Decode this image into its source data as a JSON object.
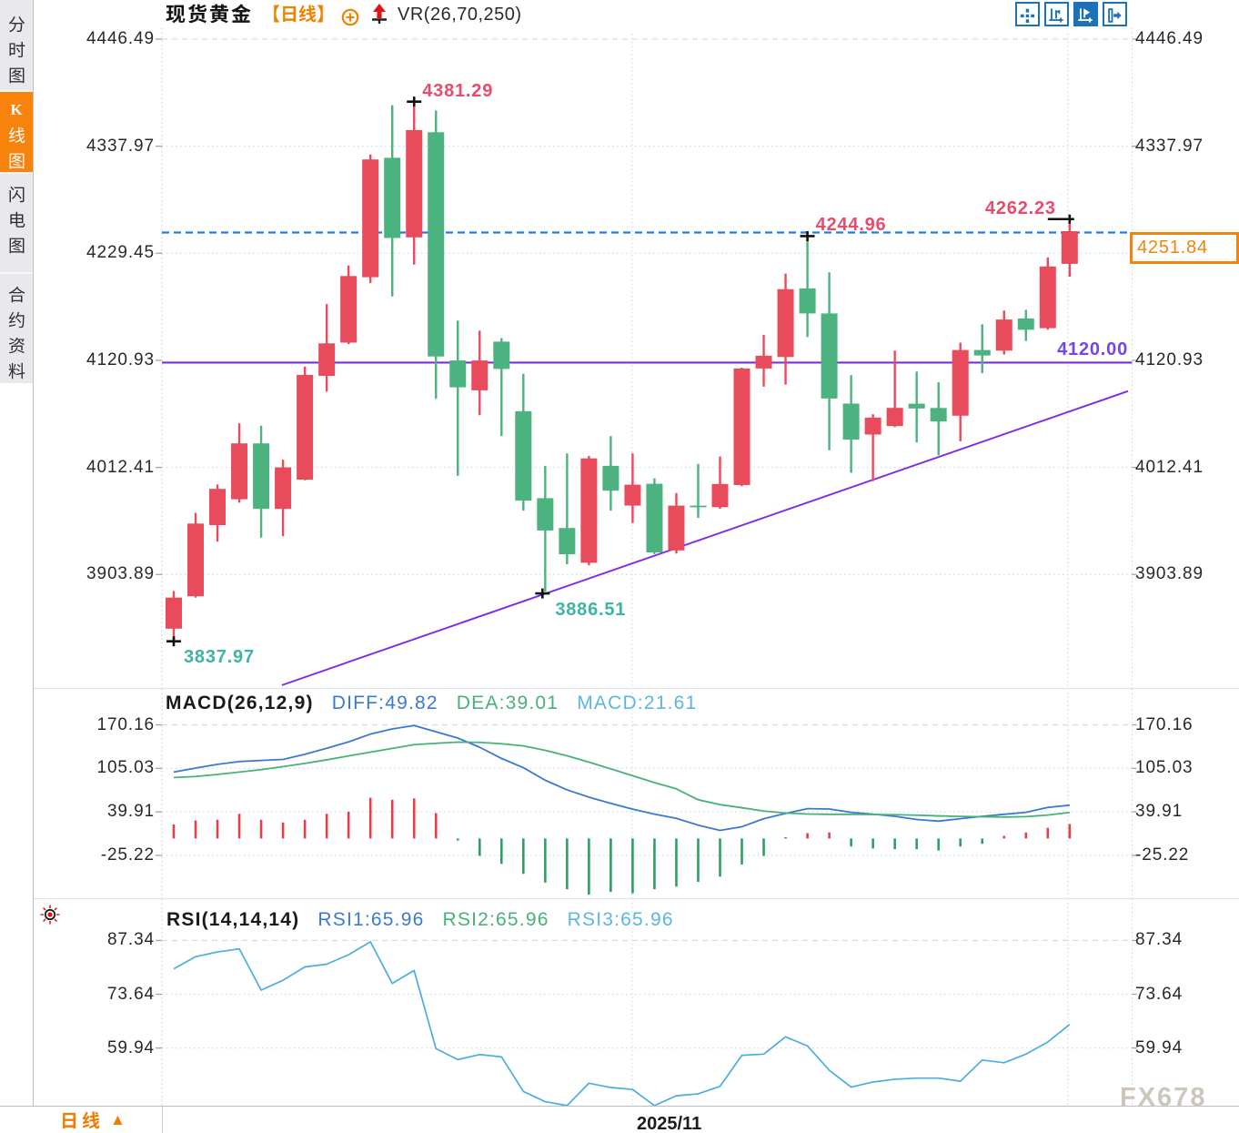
{
  "app": {
    "watermark": "FX678"
  },
  "sidebar": {
    "items": [
      {
        "label": "分时图",
        "active": false
      },
      {
        "label": "K线图",
        "active": true
      },
      {
        "label": "闪电图",
        "active": false
      },
      {
        "label": "合约资料",
        "active": false
      }
    ]
  },
  "header": {
    "symbol": "现货黄金",
    "period_tag": "【日线】",
    "indicator": "VR(26,70,250)"
  },
  "toolbar": {
    "buttons": [
      {
        "name": "crosshair",
        "active": false
      },
      {
        "name": "axis-left",
        "active": false
      },
      {
        "name": "axis-right",
        "active": true
      },
      {
        "name": "pan-right",
        "active": false
      }
    ]
  },
  "main_chart": {
    "y_ticks": [
      "4446.49",
      "4337.97",
      "4229.45",
      "4120.93",
      "4012.41",
      "3903.89"
    ],
    "hline_label": "4120.00",
    "current_price": "4251.84",
    "x_label": "2025/11"
  },
  "macd_panel": {
    "title": "MACD(26,12,9)",
    "diff_label": "DIFF:49.82",
    "dea_label": "DEA:39.01",
    "macd_label": "MACD:21.61",
    "y_ticks": [
      "170.16",
      "105.03",
      "39.91",
      "-25.22"
    ]
  },
  "rsi_panel": {
    "title": "RSI(14,14,14)",
    "rsi1_label": "RSI1:65.96",
    "rsi2_label": "RSI2:65.96",
    "rsi3_label": "RSI3:65.96",
    "y_ticks": [
      "87.34",
      "73.64",
      "59.94"
    ]
  },
  "bottom_bar": {
    "period": "日线",
    "date_label": "2025/11"
  },
  "colors": {
    "up": "#e84b5c",
    "down": "#4cb27f",
    "accent_orange": "#f5820a",
    "purple_line": "#7b2bea",
    "dashed_blue": "#1f7de0",
    "diff_blue": "#3b79d1",
    "dea_green": "#47b179",
    "macd_lightblue": "#5ab7e0",
    "rsi_blue": "#49aedd",
    "annotation_red": "#e84b6b",
    "annotation_teal": "#3fb3a5",
    "toolbar_blue": "#1c72b8"
  },
  "chart_data": {
    "type": "candlestick",
    "title": "现货黄金 日线 (Spot Gold Daily)",
    "price_axis_ticks": [
      4446.49,
      4337.97,
      4229.45,
      4120.93,
      4012.41,
      3903.89
    ],
    "candles_ohlc": [
      [
        3848.96,
        3887.15,
        3837.97,
        3880.41
      ],
      [
        3881.8,
        3966.38,
        3880.41,
        3955.5
      ],
      [
        3953.93,
        3995.07,
        3937.14,
        3990.64
      ],
      [
        3980.13,
        4056.96,
        3976.62,
        4036.76
      ],
      [
        4036.76,
        4054.75,
        3941.29,
        3970.35
      ],
      [
        3970.35,
        4020.16,
        3942.77,
        4012.41
      ],
      [
        4000.05,
        4114.52,
        3999.4,
        4106.22
      ],
      [
        4105.2,
        4177.98,
        4089.25,
        4138.13
      ],
      [
        4138.87,
        4217.09,
        4137.39,
        4206.39
      ],
      [
        4205.19,
        4329.62,
        4199.29,
        4324.55
      ],
      [
        4326.21,
        4379.52,
        4185.64,
        4244.95
      ],
      [
        4245.59,
        4381.29,
        4218.01,
        4354.34
      ],
      [
        4352.13,
        4374.17,
        4081.96,
        4124.85
      ],
      [
        4120.79,
        4161.1,
        4003.83,
        4093.58
      ],
      [
        4090.54,
        4150.95,
        4065.36,
        4120.79
      ],
      [
        4139.89,
        4143.48,
        4044.14,
        4112.21
      ],
      [
        4069.41,
        4107.23,
        3968.6,
        3978.74
      ],
      [
        3981.23,
        4013.98,
        3886.51,
        3948.49
      ],
      [
        3950.98,
        4026.52,
        3914.27,
        3924.32
      ],
      [
        3915.74,
        4024.03,
        3913.25,
        4021.54
      ],
      [
        4013.98,
        4044.14,
        3968.6,
        3988.8
      ],
      [
        3973.67,
        4026.52,
        3955.96,
        3994.88
      ],
      [
        3995.81,
        4001.34,
        3924.51,
        3926.26
      ],
      [
        3928.29,
        3986.4,
        3925.06,
        3973.67
      ],
      [
        3973.67,
        4016.01,
        3961.22,
        3972.1
      ],
      [
        3972.1,
        4023.48,
        3970.44,
        3995.62
      ],
      [
        3994.52,
        4113.5,
        3993.22,
        4112.67
      ],
      [
        4112.67,
        4146.62,
        4094.23,
        4125.59
      ],
      [
        4124.3,
        4208.88,
        4096.35,
        4193.02
      ],
      [
        4193.85,
        4244.96,
        4144.5,
        4168.48
      ],
      [
        4168.48,
        4210.17,
        4029.75,
        4082.24
      ],
      [
        4077.07,
        4105.85,
        4006.97,
        4040.54
      ],
      [
        4045.71,
        4066.28,
        3998.39,
        4062.87
      ],
      [
        4054.29,
        4130.75,
        4053.36,
        4072.73
      ],
      [
        4076.98,
        4109.54,
        4037.78,
        4072.09
      ],
      [
        4072.64,
        4098.75,
        4024.77,
        4058.99
      ],
      [
        4064.8,
        4138.87,
        4038.79,
        4131.4
      ],
      [
        4131.4,
        4157.41,
        4107.88,
        4125.86
      ],
      [
        4130.75,
        4171.43,
        4126.79,
        4162.3
      ],
      [
        4163.31,
        4172.08,
        4140.53,
        4151.88
      ],
      [
        4153.54,
        4225.21,
        4151.88,
        4216.08
      ],
      [
        4218.75,
        4262.23,
        4205.65,
        4251.84
      ]
    ],
    "hline_value": 4120.0,
    "current_price_value": 4251.84,
    "trendline": {
      "i1": 4.95,
      "p1": 3791.7,
      "i2": 43.67,
      "p2": 4089.7
    },
    "month_gridline_index": 20.98,
    "last_gridline_index": 40.92,
    "annotations": [
      {
        "label": "4381.29",
        "value": 4381.29,
        "index": 11,
        "side": "high",
        "color": "red",
        "marker_dx": 0
      },
      {
        "label": "4244.96",
        "value": 4244.96,
        "index": 29,
        "side": "high",
        "color": "red",
        "marker_dx": 0
      },
      {
        "label": "4262.23",
        "value": 4262.23,
        "index": 41,
        "side": "high",
        "color": "red",
        "align": "left",
        "marker_dx": 0,
        "marker_long": true
      },
      {
        "label": "3837.97",
        "value": 3837.97,
        "index": 0,
        "side": "low",
        "color": "teal",
        "marker_dx": 0
      },
      {
        "label": "3886.51",
        "value": 3886.51,
        "index": 17,
        "side": "low",
        "color": "teal",
        "marker_dx": -3
      }
    ],
    "macd": {
      "ticks": [
        170.16,
        105.03,
        39.91,
        -25.22
      ],
      "diff": [
        99.5,
        105.4,
        111.1,
        115.2,
        116.8,
        118.4,
        126.1,
        135.1,
        144.6,
        156.3,
        164.0,
        169.2,
        159.7,
        150.4,
        136.6,
        119.9,
        106.0,
        87.2,
        72.8,
        61.9,
        52.6,
        43.9,
        36.4,
        30.2,
        20.0,
        12.1,
        17.6,
        29.6,
        37.4,
        44.7,
        44.1,
        39.2,
        36.5,
        33.2,
        28.4,
        26.0,
        29.6,
        33.2,
        36.2,
        39.2,
        46.5,
        49.82
      ],
      "dea": [
        91.3,
        92.8,
        95.9,
        99.5,
        103.1,
        107.7,
        112.4,
        117.8,
        123.6,
        129.3,
        134.9,
        140.5,
        142.6,
        144.3,
        143.9,
        141.9,
        138.7,
        132.0,
        123.9,
        114.3,
        104.2,
        94.0,
        83.6,
        74.4,
        58.0,
        50.7,
        46.1,
        41.1,
        38.2,
        36.6,
        36.2,
        36.2,
        35.9,
        35.6,
        34.9,
        33.8,
        33.1,
        32.5,
        32.1,
        32.7,
        35.1,
        39.01
      ],
      "hist": [
        21,
        27,
        28,
        37,
        28,
        24,
        28,
        37,
        40,
        61,
        58,
        60,
        38,
        -3,
        -26,
        -38,
        -53,
        -66,
        -76,
        -84,
        -80,
        -82,
        -76,
        -72,
        -65,
        -57,
        -39,
        -26,
        2,
        8,
        9,
        -12,
        -15,
        -16,
        -16,
        -18,
        -12,
        -8,
        4,
        9,
        16,
        21.61
      ]
    },
    "rsi": {
      "ticks": [
        87.34,
        73.64,
        59.94
      ],
      "values": [
        80.1,
        83.2,
        84.4,
        85.2,
        74.7,
        77.2,
        80.6,
        81.3,
        83.7,
        87.0,
        76.4,
        79.7,
        59.8,
        57.0,
        58.3,
        57.7,
        48.9,
        46.3,
        45.3,
        51.0,
        49.9,
        49.4,
        45.3,
        47.8,
        48.3,
        50.2,
        58.1,
        58.4,
        62.8,
        60.5,
        54.3,
        50.0,
        51.3,
        52.0,
        52.3,
        52.3,
        51.5,
        56.9,
        56.2,
        58.4,
        61.5,
        65.96
      ]
    }
  }
}
